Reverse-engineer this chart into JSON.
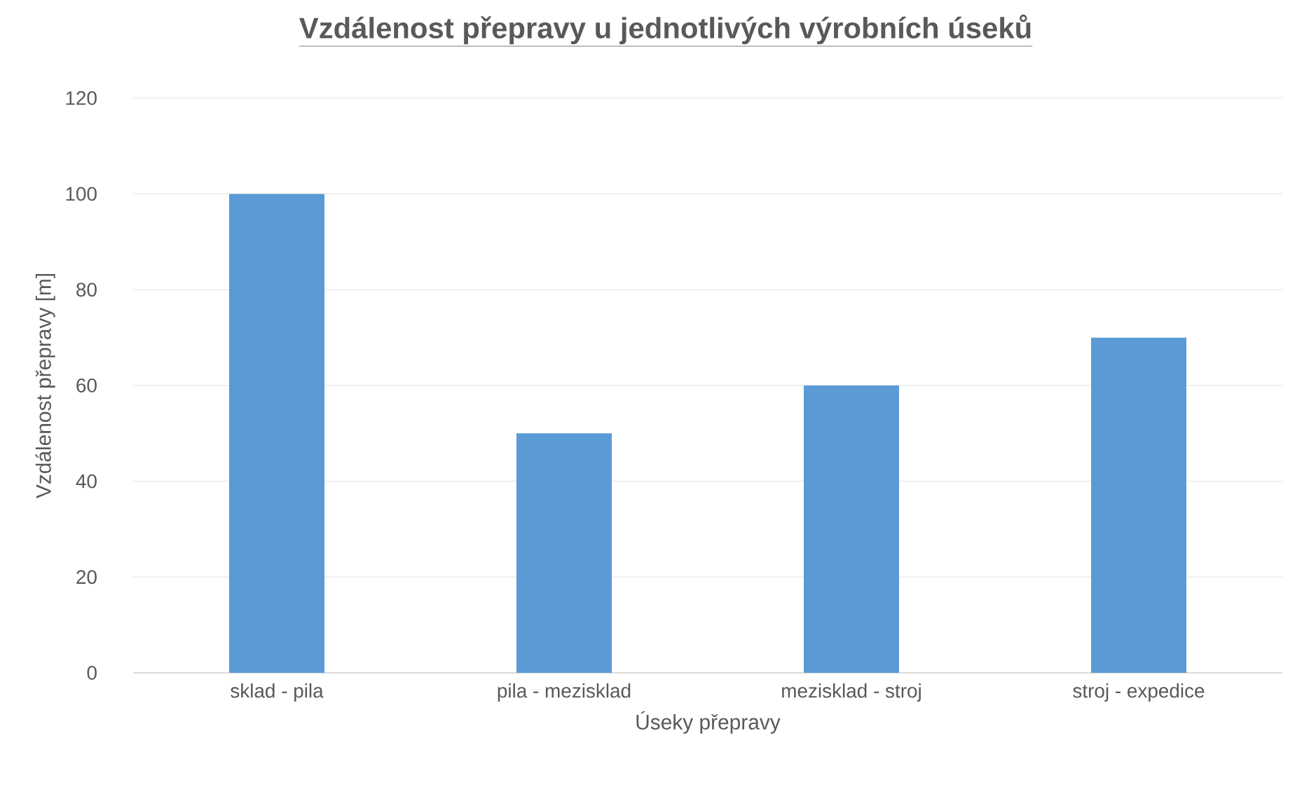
{
  "chart_data": {
    "type": "bar",
    "title": "Vzdálenost přepravy u jednotlivých výrobních úseků",
    "xlabel": "Úseky přepravy",
    "ylabel": "Vzdálenost přepravy [m]",
    "categories": [
      "sklad - pila",
      "pila - mezisklad",
      "mezisklad - stroj",
      "stroj - expedice"
    ],
    "values": [
      100,
      50,
      60,
      70
    ],
    "color": "#5b9bd5",
    "ylim": [
      0,
      120
    ],
    "yticks": [
      0,
      20,
      40,
      60,
      80,
      100,
      120
    ],
    "grid": "y"
  }
}
